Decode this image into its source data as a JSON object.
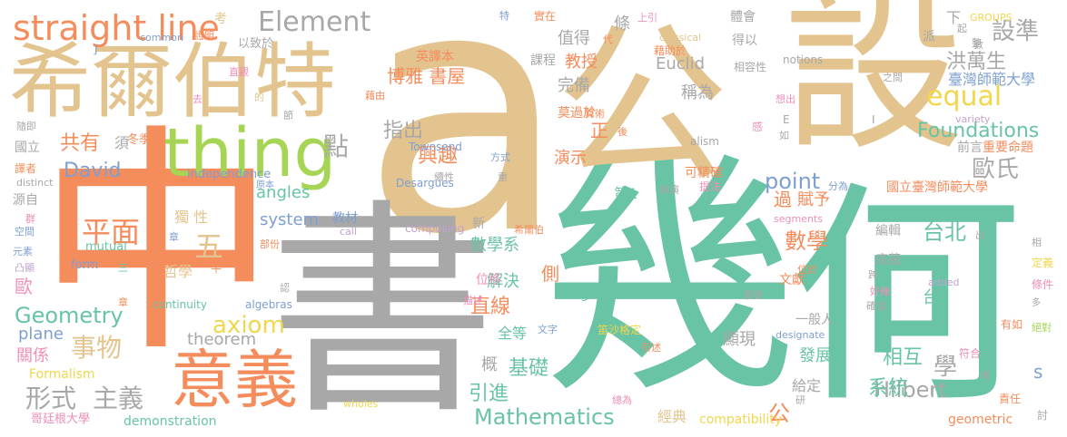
{
  "words": [
    "a",
    "中",
    "書",
    "幾",
    "何",
    "公",
    "設",
    "希爾伯特",
    "thing",
    "意義",
    "straight line",
    "Element",
    "Mathematics",
    "平面",
    "五",
    "形式",
    "主義",
    "Geometry",
    "事物",
    "axiom",
    "David",
    "共有",
    "點",
    "equal",
    "Foundations",
    "設準",
    "洪萬生",
    "臺灣師範大學",
    "歐氏",
    "台北",
    "數學",
    "point",
    "Hilbert",
    "學",
    "博雅 書屋",
    "興趣",
    "指出",
    "直線",
    "解決",
    "基礎",
    "數學系",
    "引進",
    "系統",
    "相互",
    "發展",
    "經典",
    "教授",
    "完備",
    "值得",
    "Euclid",
    "稱為",
    "angles",
    "system",
    "theorem",
    "plane",
    "關係",
    "歐",
    "台",
    "正",
    "過",
    "賦予",
    "第1",
    "演示",
    "全等",
    "位移",
    "公",
    "給定",
    "一般人",
    "顯現",
    "文獻",
    "編輯",
    "底蘊",
    "國立臺灣師範大學",
    "前言",
    "重要命題",
    "哲學",
    "獨 性",
    "概",
    "congruence",
    "英譯本",
    "可精確",
    "課程",
    "莫過於",
    "側",
    "條",
    "考",
    "以致於",
    "冬季班",
    "Townsend",
    "Formalism",
    "哥廷根大學",
    "demonstration",
    "compatibility",
    "geometric",
    "s",
    "體會",
    "得以",
    "相容性",
    "notions",
    "GROUPS",
    "classical",
    "上引",
    "藉助於",
    "independence",
    "mutual",
    "form",
    "continuity",
    "algebras",
    "composing",
    "Desargues",
    "alism",
    "variety",
    "distinct",
    "common",
    "designate",
    "segments",
    "wholes",
    "added",
    "call",
    "提法",
    "實在",
    "事實",
    "描述",
    "符合",
    "有如",
    "條件",
    "責任",
    "討",
    "定義",
    "好幾",
    "位於",
    "確當",
    "絕對",
    "元素",
    "空間",
    "源自",
    "原本",
    "國立",
    "譯者",
    "隨即",
    "須",
    "部份",
    "三",
    "章",
    "群",
    "文字",
    "方式",
    "分為",
    "之間",
    "派",
    "下",
    "起",
    "整",
    "特",
    "J",
    "證明",
    "直觀",
    "藉由",
    "算術",
    "節",
    "後",
    "感",
    "想出",
    "如",
    "E",
    "代",
    "數",
    "的",
    "章",
    "笛沙格定",
    "引述",
    "總為",
    "研",
    "續",
    "出",
    "相",
    "凸顯",
    "希爾伯",
    "新",
    "教材",
    "續性",
    "推演",
    "跨",
    "多",
    "平",
    "認",
    "戴",
    "去",
    "I",
    "l",
    "重"
  ]
}
